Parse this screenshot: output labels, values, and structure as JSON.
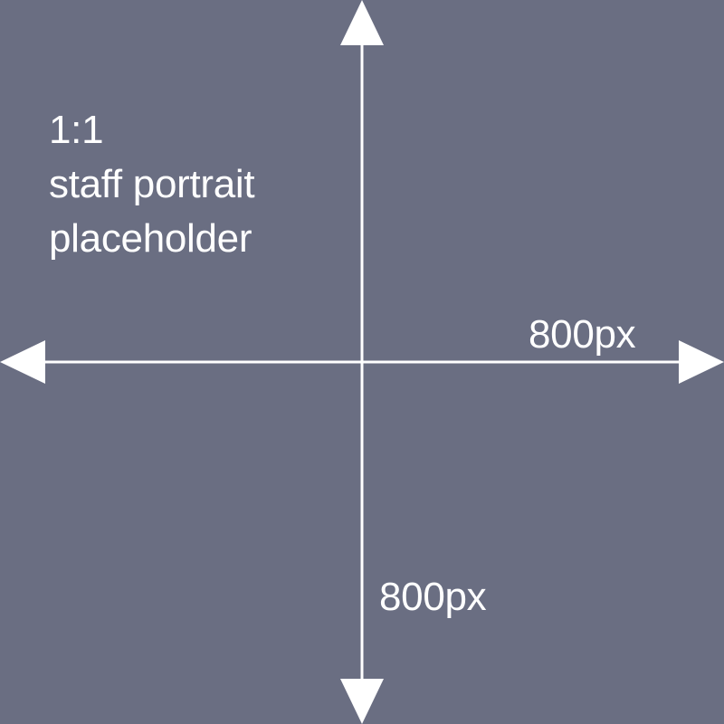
{
  "placeholder": {
    "ratio": "1:1",
    "line1": "staff portrait",
    "line2": "placeholder"
  },
  "dimensions": {
    "width_label": "800px",
    "height_label": "800px"
  },
  "colors": {
    "background": "#6a6e82",
    "foreground": "#ffffff"
  }
}
